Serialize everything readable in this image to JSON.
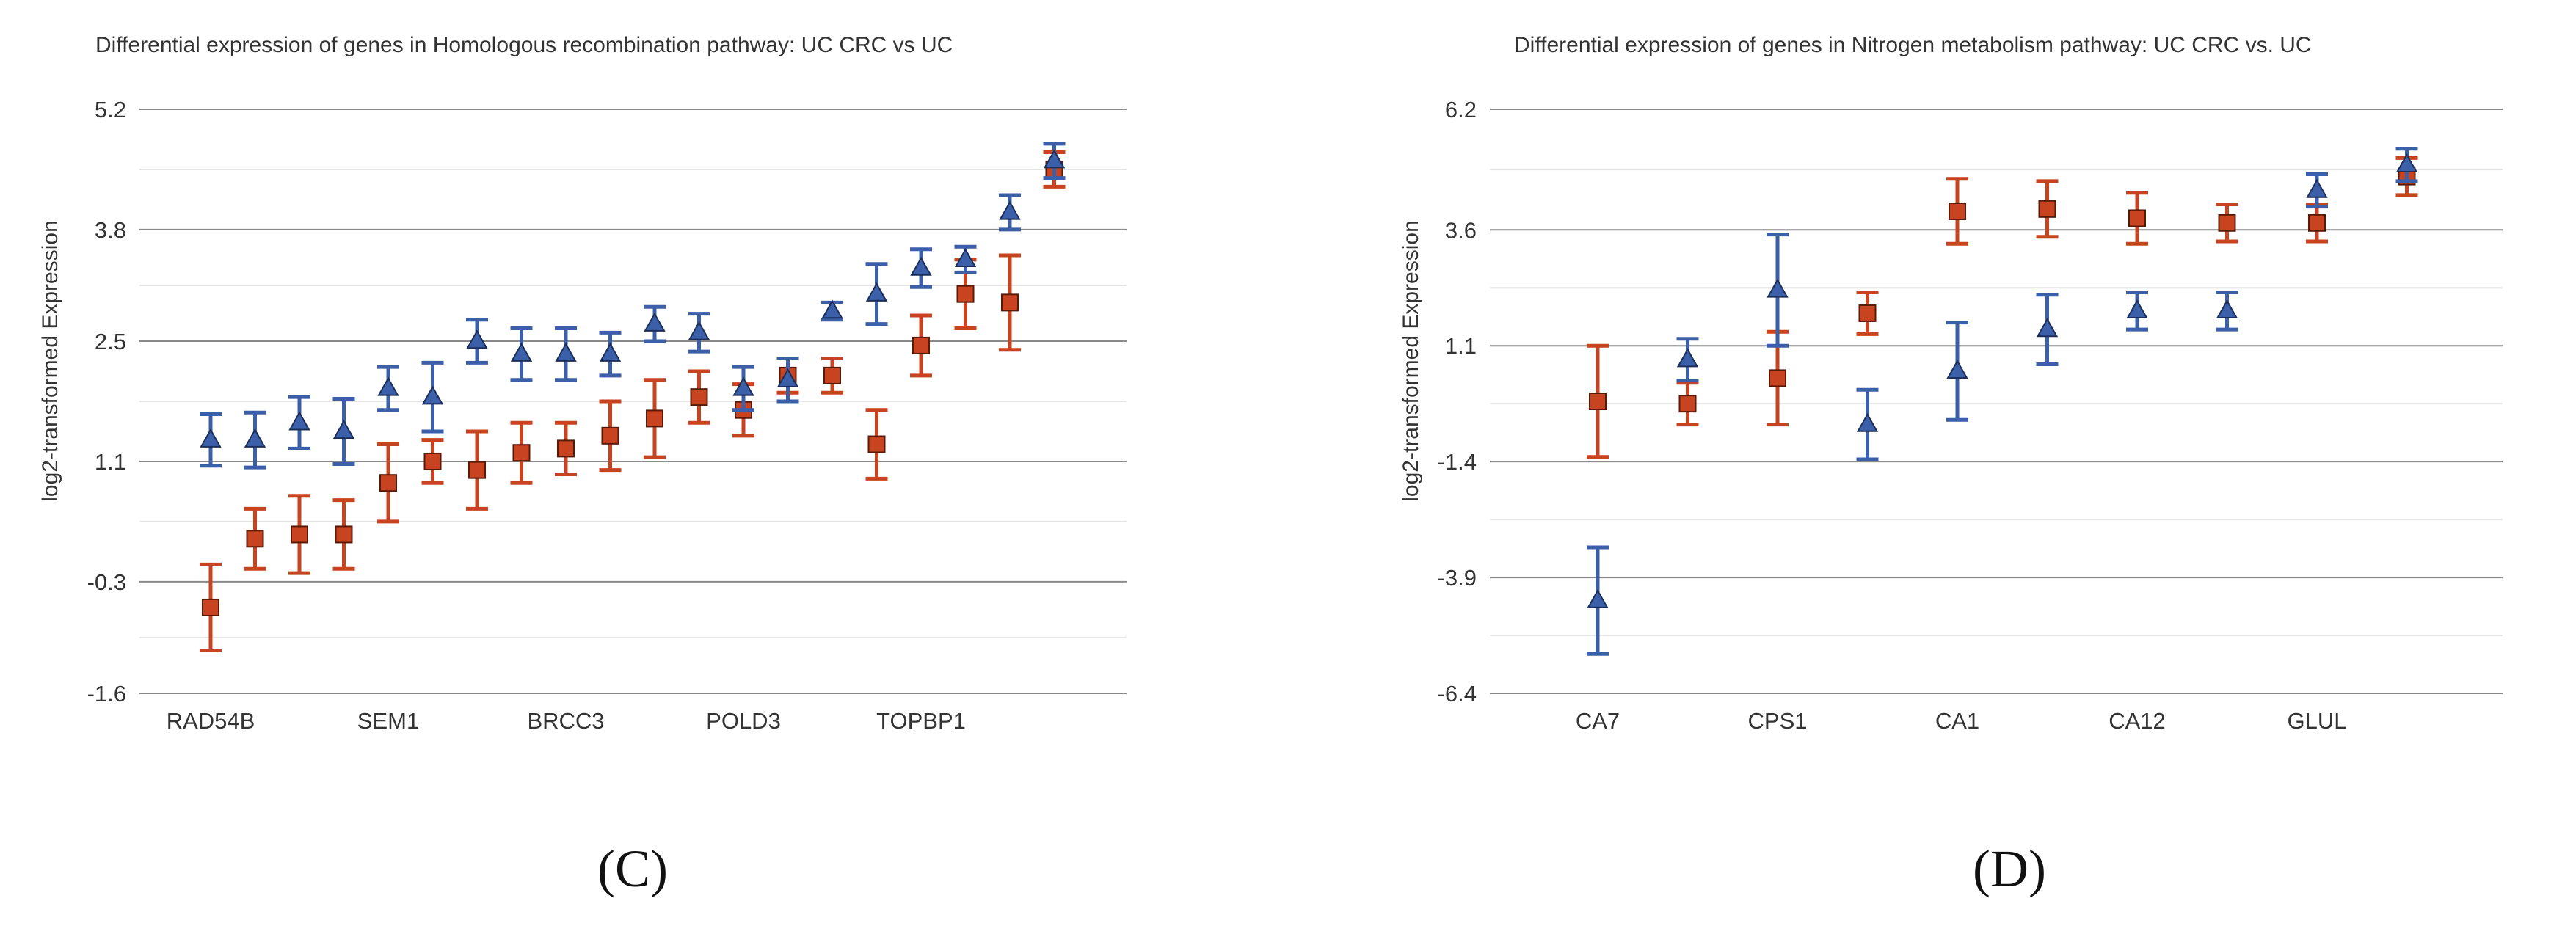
{
  "colors": {
    "series_a": "#3b5fa8",
    "series_b": "#c8431f",
    "grid_major": "#8a8a8a",
    "grid_minor": "#e4e4e4",
    "text": "#333333"
  },
  "chart_data": [
    {
      "type": "scatter",
      "panel_label": "(C)",
      "title": "Differential expression of genes in Homologous recombination pathway: UC CRC vs UC",
      "xlabel": "",
      "ylabel": "log2-transformed Expression",
      "ylim": [
        -1.6,
        5.2
      ],
      "yticks": [
        -1.6,
        -0.3,
        1.1,
        2.5,
        3.8,
        5.2
      ],
      "grid": true,
      "n_points": 20,
      "xtick_labels": [
        {
          "index": 0,
          "label": "RAD54B"
        },
        {
          "index": 4,
          "label": "SEM1"
        },
        {
          "index": 8,
          "label": "BRCC3"
        },
        {
          "index": 12,
          "label": "POLD3"
        },
        {
          "index": 16,
          "label": "TOPBP1"
        }
      ],
      "series": [
        {
          "name": "series_a",
          "marker": "triangle",
          "values": [
            1.35,
            1.35,
            1.55,
            1.45,
            1.95,
            1.85,
            2.5,
            2.35,
            2.35,
            2.35,
            2.7,
            2.6,
            1.95,
            2.05,
            2.85,
            3.05,
            3.35,
            3.45,
            4.0,
            4.6
          ],
          "errors": [
            0.3,
            0.32,
            0.3,
            0.38,
            0.25,
            0.4,
            0.25,
            0.3,
            0.3,
            0.25,
            0.2,
            0.22,
            0.25,
            0.25,
            0.1,
            0.35,
            0.22,
            0.15,
            0.2,
            0.2
          ]
        },
        {
          "name": "series_b",
          "marker": "square",
          "values": [
            -0.6,
            0.2,
            0.25,
            0.25,
            0.85,
            1.1,
            1.0,
            1.2,
            1.25,
            1.4,
            1.6,
            1.85,
            1.7,
            2.1,
            2.1,
            1.3,
            2.45,
            3.05,
            2.95,
            4.5
          ],
          "errors": [
            0.5,
            0.35,
            0.45,
            0.4,
            0.45,
            0.25,
            0.45,
            0.35,
            0.3,
            0.4,
            0.45,
            0.3,
            0.3,
            0.2,
            0.2,
            0.4,
            0.35,
            0.4,
            0.55,
            0.2
          ]
        }
      ]
    },
    {
      "type": "scatter",
      "panel_label": "(D)",
      "title": "Differential expression of genes in Nitrogen metabolism pathway: UC CRC vs. UC",
      "xlabel": "",
      "ylabel": "log2-transformed Expression",
      "ylim": [
        -6.4,
        6.2
      ],
      "yticks": [
        -6.4,
        -3.9,
        -1.4,
        1.1,
        3.6,
        6.2
      ],
      "grid": true,
      "n_points": 10,
      "xtick_labels": [
        {
          "index": 0,
          "label": "CA7"
        },
        {
          "index": 2,
          "label": "CPS1"
        },
        {
          "index": 4,
          "label": "CA1"
        },
        {
          "index": 6,
          "label": "CA12"
        },
        {
          "index": 8,
          "label": "GLUL"
        }
      ],
      "series": [
        {
          "name": "series_a",
          "marker": "triangle",
          "values": [
            -4.4,
            0.8,
            2.3,
            -0.6,
            0.55,
            1.45,
            1.85,
            1.85,
            4.45,
            5.0
          ],
          "errors": [
            1.15,
            0.45,
            1.2,
            0.75,
            1.05,
            0.75,
            0.4,
            0.4,
            0.35,
            0.35
          ]
        },
        {
          "name": "series_b",
          "marker": "square",
          "values": [
            -0.1,
            -0.15,
            0.4,
            1.8,
            4.0,
            4.05,
            3.85,
            3.75,
            3.75,
            4.75
          ],
          "errors": [
            1.2,
            0.45,
            1.0,
            0.45,
            0.7,
            0.6,
            0.55,
            0.4,
            0.4,
            0.4
          ]
        }
      ]
    }
  ]
}
